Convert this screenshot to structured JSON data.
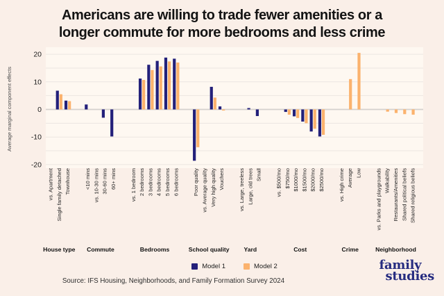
{
  "chart_data": {
    "type": "bar",
    "title_line1": "Americans are willing to trade fewer amenities or a",
    "title_line2": "longer commute for more bedrooms and less crime",
    "ylabel": "Average marginal component effects",
    "ylim": [
      -20,
      20
    ],
    "yticks": [
      20,
      10,
      0,
      -10,
      -20
    ],
    "grid_step": 5,
    "legend_position": "bottom-center",
    "legend": [
      {
        "name": "Model 1",
        "color": "#23207a"
      },
      {
        "name": "Model 2",
        "color": "#fbb26d"
      }
    ],
    "series_note": "m1 = Model 1 (navy), m2 = Model 2 (orange); null = no bar shown",
    "groups": [
      {
        "name": "House type",
        "items": [
          {
            "label": "vs. Apartment",
            "m1": null,
            "m2": null
          },
          {
            "label": "Single family detached",
            "m1": 6.8,
            "m2": 5.5
          },
          {
            "label": "Townhouse",
            "m1": 3.2,
            "m2": 3.0
          }
        ]
      },
      {
        "name": "Commute",
        "items": [
          {
            "label": "<10 mins",
            "m1": 1.8,
            "m2": null
          },
          {
            "label": "vs. 10-30 mins",
            "m1": null,
            "m2": null
          },
          {
            "label": "30-60 mins",
            "m1": -3.0,
            "m2": null
          },
          {
            "label": "60+ mins",
            "m1": -9.8,
            "m2": null
          }
        ]
      },
      {
        "name": "Bedrooms",
        "items": [
          {
            "label": "vs. 1 bedroom",
            "m1": null,
            "m2": null
          },
          {
            "label": "2 bedrooms",
            "m1": 11.2,
            "m2": 10.7
          },
          {
            "label": "3 bedrooms",
            "m1": 16.2,
            "m2": 14.3
          },
          {
            "label": "4 bedrooms",
            "m1": 17.6,
            "m2": 15.6
          },
          {
            "label": "5 bedrooms",
            "m1": 18.8,
            "m2": 17.4
          },
          {
            "label": "6 bedrooms",
            "m1": 18.4,
            "m2": 17.0
          }
        ]
      },
      {
        "name": "School quality",
        "items": [
          {
            "label": "Poor quality",
            "m1": -18.6,
            "m2": -13.7
          },
          {
            "label": "vs. Average quality",
            "m1": null,
            "m2": null
          },
          {
            "label": "Very high quality",
            "m1": 8.2,
            "m2": 4.3
          },
          {
            "label": "Vouchers",
            "m1": 1.1,
            "m2": -0.4
          }
        ]
      },
      {
        "name": "Yard",
        "items": [
          {
            "label": "vs. Large, treeless",
            "m1": null,
            "m2": null
          },
          {
            "label": "Large, old trees",
            "m1": 0.5,
            "m2": null
          },
          {
            "label": "Small",
            "m1": -2.4,
            "m2": null
          }
        ]
      },
      {
        "name": "Cost",
        "items": [
          {
            "label": "vs. $500/mo",
            "m1": null,
            "m2": null
          },
          {
            "label": "$750/mo",
            "m1": -0.9,
            "m2": -1.9
          },
          {
            "label": "$1000/mo",
            "m1": -2.5,
            "m2": -3.1
          },
          {
            "label": "$1500/mo",
            "m1": -4.4,
            "m2": -5.0
          },
          {
            "label": "$2000/mo",
            "m1": -8.0,
            "m2": -7.0
          },
          {
            "label": "$2500/mo",
            "m1": -9.8,
            "m2": -9.2
          }
        ]
      },
      {
        "name": "Crime",
        "items": [
          {
            "label": "vs. High crime",
            "m1": null,
            "m2": null
          },
          {
            "label": "Average",
            "m1": null,
            "m2": 11.0
          },
          {
            "label": "Low",
            "m1": null,
            "m2": 20.5
          }
        ]
      },
      {
        "name": "Neighborhood",
        "items": [
          {
            "label": "vs. Parks and playgrounds",
            "m1": null,
            "m2": null
          },
          {
            "label": "Walkability",
            "m1": null,
            "m2": -0.8
          },
          {
            "label": "Restaurants/Amenities",
            "m1": null,
            "m2": -1.3
          },
          {
            "label": "Shared political beliefs",
            "m1": null,
            "m2": -1.7
          },
          {
            "label": "Shared religious beliefs",
            "m1": null,
            "m2": -1.9
          }
        ]
      }
    ]
  },
  "footer": {
    "source": "Source: IFS Housing, Neighborhoods, and Family Formation Survey 2024",
    "logo_line1": "family",
    "logo_line2": "studies"
  },
  "colors": {
    "background": "#faefe8",
    "plot_background": "#fef8f1",
    "gridline": "#ece6e1",
    "zero_line": "#d5d1cd",
    "model1": "#23207a",
    "model2": "#fbb26d",
    "title_text": "#131313",
    "logo_text": "#262c80"
  }
}
